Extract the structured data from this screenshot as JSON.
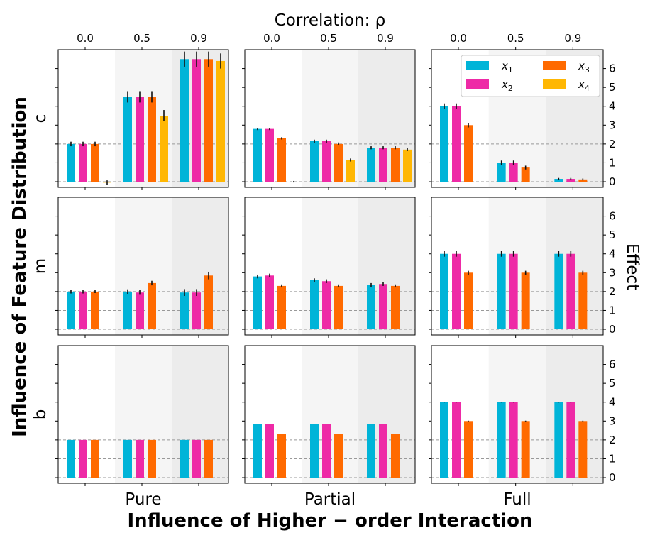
{
  "chart_data": {
    "type": "bar",
    "title": "Correlation: ρ",
    "x_title": "Influence of Higher − order Interaction",
    "y_title_left": "Influence of Feature Distribution",
    "y_title_right": "Effect",
    "columns": [
      "Pure",
      "Partial",
      "Full"
    ],
    "rows": [
      "c",
      "m",
      "b"
    ],
    "groups": [
      "0.0",
      "0.5",
      "0.9"
    ],
    "ylim": [
      -0.3,
      7.0
    ],
    "yticks": [
      "0",
      "1",
      "2",
      "3",
      "4",
      "5",
      "6"
    ],
    "reference_lines": [
      0,
      1,
      2
    ],
    "series": [
      {
        "name": "x",
        "sub": "1",
        "color": "#00b4d8"
      },
      {
        "name": "x",
        "sub": "2",
        "color": "#ee2aa6"
      },
      {
        "name": "x",
        "sub": "3",
        "color": "#ff6a00"
      },
      {
        "name": "x",
        "sub": "4",
        "color": "#ffb703"
      }
    ],
    "panels": [
      {
        "row": "c",
        "col": "Pure",
        "values": [
          [
            2.0,
            2.0,
            2.0,
            -0.05
          ],
          [
            4.5,
            4.5,
            4.5,
            3.5
          ],
          [
            6.5,
            6.5,
            6.5,
            6.4
          ]
        ],
        "errors": [
          [
            0.12,
            0.12,
            0.12,
            0.12
          ],
          [
            0.3,
            0.3,
            0.3,
            0.3
          ],
          [
            0.4,
            0.4,
            0.4,
            0.4
          ]
        ]
      },
      {
        "row": "c",
        "col": "Partial",
        "values": [
          [
            2.8,
            2.8,
            2.3,
            0.0
          ],
          [
            2.15,
            2.15,
            2.0,
            1.15
          ],
          [
            1.8,
            1.8,
            1.8,
            1.7
          ]
        ],
        "errors": [
          [
            0.06,
            0.06,
            0.06,
            0.04
          ],
          [
            0.08,
            0.08,
            0.08,
            0.08
          ],
          [
            0.08,
            0.08,
            0.08,
            0.08
          ]
        ]
      },
      {
        "row": "c",
        "col": "Full",
        "values": [
          [
            4.0,
            4.0,
            3.0
          ],
          [
            1.0,
            1.0,
            0.75
          ],
          [
            0.15,
            0.15,
            0.12
          ]
        ],
        "errors": [
          [
            0.15,
            0.15,
            0.12
          ],
          [
            0.12,
            0.12,
            0.1
          ],
          [
            0.05,
            0.05,
            0.05
          ]
        ]
      },
      {
        "row": "m",
        "col": "Pure",
        "values": [
          [
            2.0,
            2.0,
            2.0
          ],
          [
            2.0,
            1.95,
            2.45
          ],
          [
            1.95,
            1.95,
            2.85
          ]
        ],
        "errors": [
          [
            0.1,
            0.1,
            0.08
          ],
          [
            0.12,
            0.12,
            0.12
          ],
          [
            0.18,
            0.18,
            0.2
          ]
        ]
      },
      {
        "row": "m",
        "col": "Partial",
        "values": [
          [
            2.8,
            2.85,
            2.3
          ],
          [
            2.6,
            2.55,
            2.3
          ],
          [
            2.35,
            2.4,
            2.3
          ]
        ],
        "errors": [
          [
            0.1,
            0.1,
            0.08
          ],
          [
            0.1,
            0.1,
            0.08
          ],
          [
            0.1,
            0.1,
            0.08
          ]
        ]
      },
      {
        "row": "m",
        "col": "Full",
        "values": [
          [
            4.0,
            4.0,
            3.0
          ],
          [
            4.0,
            4.0,
            3.0
          ],
          [
            4.0,
            4.0,
            3.0
          ]
        ],
        "errors": [
          [
            0.15,
            0.15,
            0.1
          ],
          [
            0.15,
            0.15,
            0.1
          ],
          [
            0.15,
            0.15,
            0.1
          ]
        ]
      },
      {
        "row": "b",
        "col": "Pure",
        "values": [
          [
            2.0,
            2.0,
            2.0
          ],
          [
            2.0,
            2.0,
            2.0
          ],
          [
            2.0,
            2.0,
            2.0
          ]
        ],
        "errors": [
          [
            0.0,
            0.0,
            0.0
          ],
          [
            0.0,
            0.0,
            0.0
          ],
          [
            0.0,
            0.0,
            0.0
          ]
        ]
      },
      {
        "row": "b",
        "col": "Partial",
        "values": [
          [
            2.85,
            2.85,
            2.3
          ],
          [
            2.85,
            2.85,
            2.3
          ],
          [
            2.85,
            2.85,
            2.3
          ]
        ],
        "errors": [
          [
            0.0,
            0.0,
            0.0
          ],
          [
            0.0,
            0.0,
            0.0
          ],
          [
            0.0,
            0.0,
            0.0
          ]
        ]
      },
      {
        "row": "b",
        "col": "Full",
        "values": [
          [
            4.0,
            4.0,
            3.0
          ],
          [
            4.0,
            4.0,
            3.0
          ],
          [
            4.0,
            4.0,
            3.0
          ]
        ],
        "errors": [
          [
            0.02,
            0.02,
            0.02
          ],
          [
            0.02,
            0.02,
            0.02
          ],
          [
            0.02,
            0.02,
            0.02
          ]
        ]
      }
    ]
  }
}
